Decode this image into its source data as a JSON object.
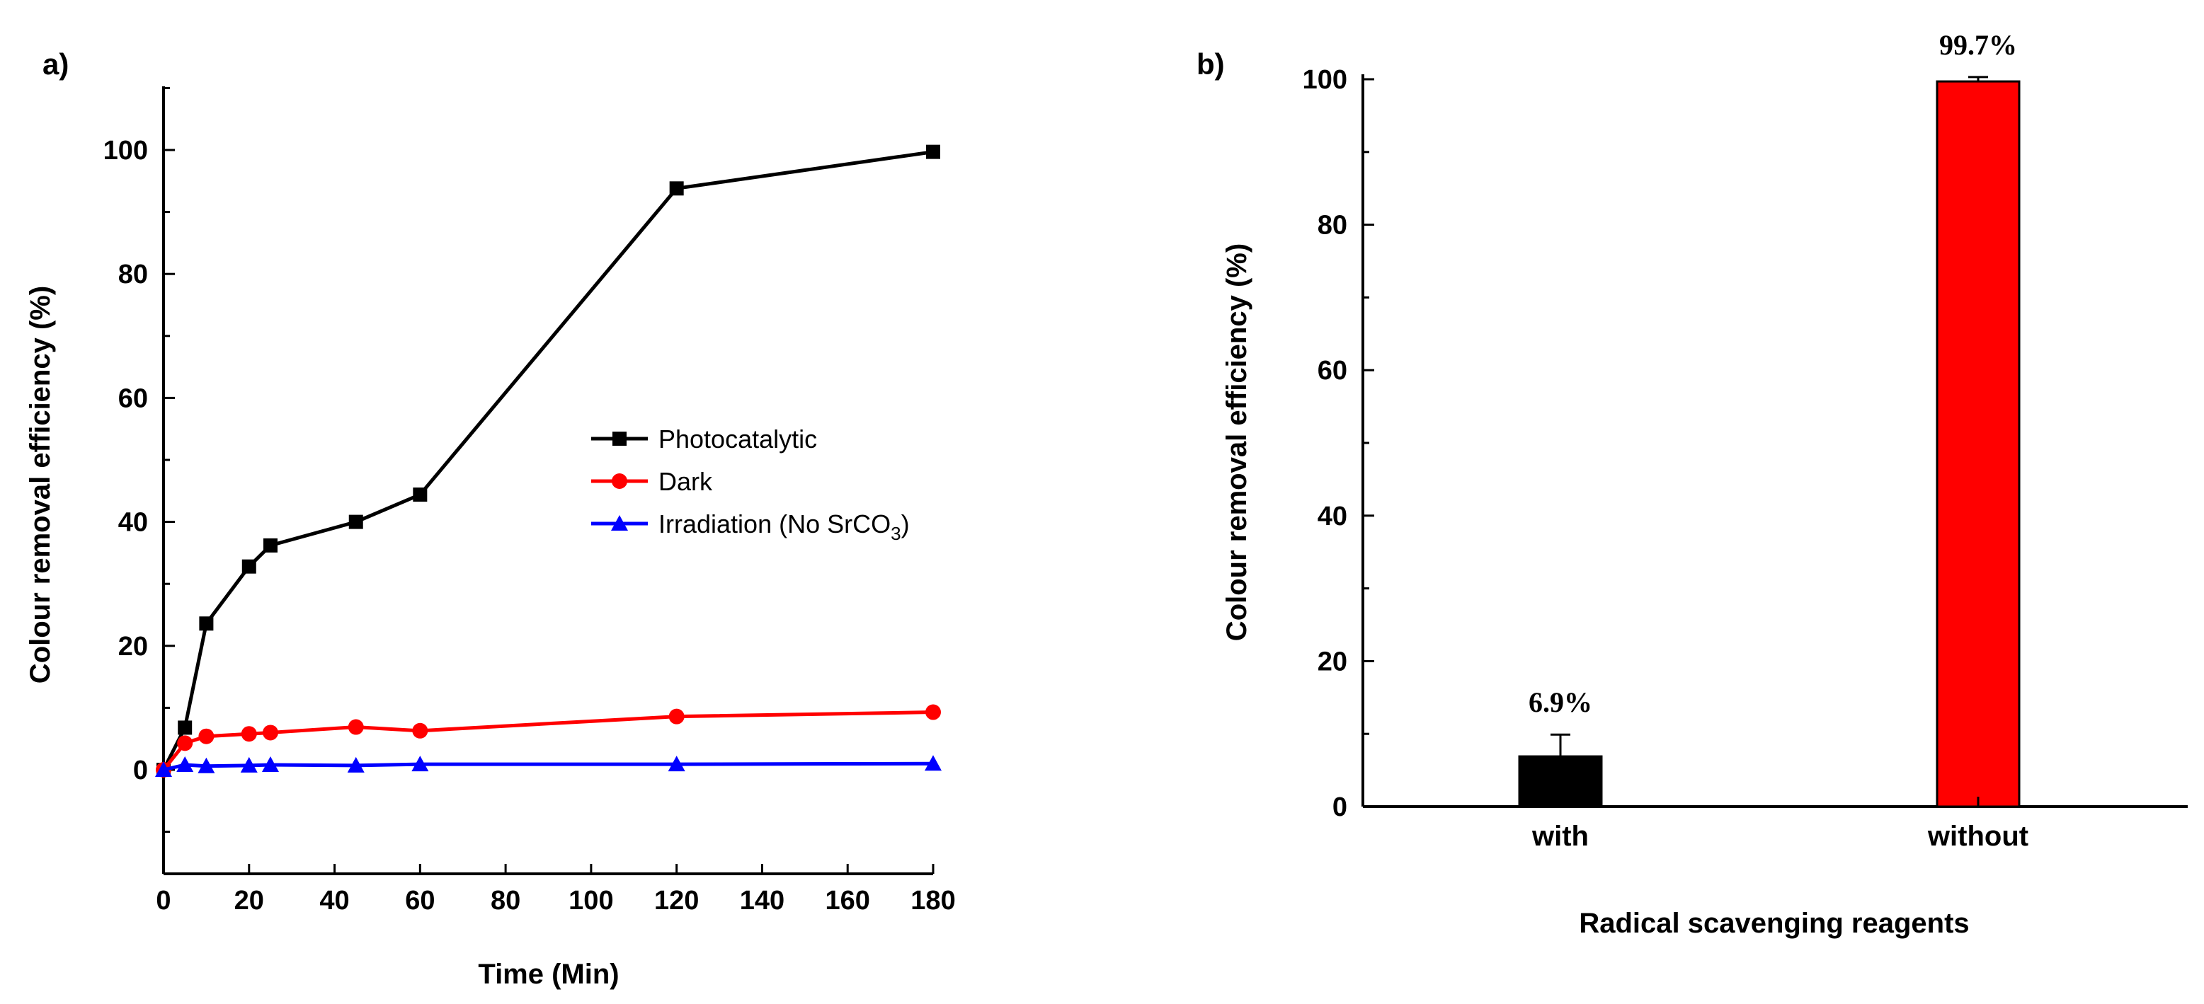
{
  "chart_data": [
    {
      "type": "line",
      "panel_label": "a)",
      "xlabel": "Time (Min)",
      "ylabel": "Colour removal efficiency (%)",
      "xlim": [
        0,
        180
      ],
      "ylim": [
        -10,
        110
      ],
      "xticks": [
        "0",
        "20",
        "40",
        "60",
        "80",
        "100",
        "120",
        "140",
        "160",
        "180"
      ],
      "yticks": [
        "0",
        "20",
        "40",
        "60",
        "80",
        "100"
      ],
      "legend_position": "center-right",
      "grid": false,
      "series": [
        {
          "name": "Photocatalytic",
          "color": "#000000",
          "marker": "square",
          "x": [
            0,
            5,
            10,
            20,
            25,
            45,
            60,
            120,
            180
          ],
          "y": [
            0,
            6.8,
            23.6,
            32.8,
            36.2,
            40.0,
            44.4,
            93.8,
            99.7
          ]
        },
        {
          "name": "Dark",
          "color": "#ff0000",
          "marker": "circle",
          "x": [
            0,
            5,
            10,
            20,
            25,
            45,
            60,
            120,
            180
          ],
          "y": [
            0,
            4.3,
            5.4,
            5.8,
            6.0,
            6.9,
            6.3,
            8.6,
            9.3
          ]
        },
        {
          "name": "Irradiation (No SrCO",
          "name_subscript": "3",
          "name_suffix": ")",
          "color": "#0000ff",
          "marker": "triangle",
          "x": [
            0,
            5,
            10,
            20,
            25,
            45,
            60,
            120,
            180
          ],
          "y": [
            0,
            0.8,
            0.6,
            0.7,
            0.8,
            0.7,
            0.9,
            0.9,
            1.0
          ]
        }
      ]
    },
    {
      "type": "bar",
      "panel_label": "b)",
      "xlabel": "Radical scavenging reagents",
      "ylabel": "Colour removal efficiency (%)",
      "ylim": [
        0,
        100
      ],
      "yticks": [
        "0",
        "20",
        "40",
        "60",
        "80",
        "100"
      ],
      "categories": [
        "with",
        "without"
      ],
      "values": [
        6.9,
        99.7
      ],
      "errors": [
        3.0,
        0.6
      ],
      "data_labels": [
        "6.9%",
        "99.7%"
      ],
      "colors": [
        "#000000",
        "#ff0000"
      ],
      "grid": false
    }
  ]
}
